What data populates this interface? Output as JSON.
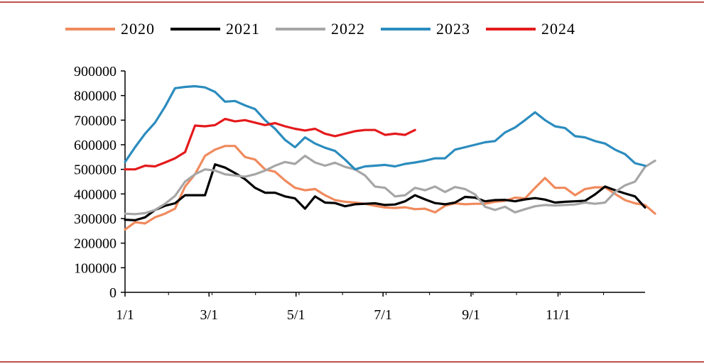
{
  "chart_data": {
    "type": "line",
    "title": "",
    "xlabel": "",
    "ylabel": "",
    "ylim": [
      0,
      900000
    ],
    "yticks": [
      "0",
      "100000",
      "200000",
      "300000",
      "400000",
      "500000",
      "600000",
      "700000",
      "800000",
      "900000"
    ],
    "xticks": [
      {
        "label": "1/1",
        "week": 0
      },
      {
        "label": "3/1",
        "week": 8.4
      },
      {
        "label": "5/1",
        "week": 17.1
      },
      {
        "label": "7/1",
        "week": 25.8
      },
      {
        "label": "9/1",
        "week": 34.6
      },
      {
        "label": "11/1",
        "week": 43.3
      }
    ],
    "xlim": [
      0,
      52
    ],
    "legend_position": "top",
    "series": [
      {
        "name": "2020",
        "color": "#f08a5d",
        "values": [
          255000,
          285000,
          280000,
          305000,
          320000,
          340000,
          430000,
          480000,
          555000,
          580000,
          595000,
          595000,
          550000,
          540000,
          500000,
          490000,
          455000,
          425000,
          415000,
          420000,
          395000,
          375000,
          368000,
          365000,
          360000,
          352000,
          345000,
          343000,
          346000,
          338000,
          340000,
          325000,
          352000,
          362000,
          358000,
          360000,
          360000,
          368000,
          372000,
          385000,
          382000,
          425000,
          465000,
          425000,
          425000,
          395000,
          420000,
          427000,
          427000,
          400000,
          375000,
          362000,
          355000,
          320000
        ]
      },
      {
        "name": "2021",
        "color": "#000000",
        "values": [
          295000,
          293000,
          305000,
          335000,
          352000,
          362000,
          395000,
          395000,
          395000,
          520000,
          507000,
          485000,
          460000,
          425000,
          405000,
          405000,
          390000,
          382000,
          340000,
          390000,
          365000,
          363000,
          350000,
          358000,
          360000,
          362000,
          355000,
          357000,
          370000,
          395000,
          378000,
          363000,
          358000,
          365000,
          388000,
          385000,
          370000,
          375000,
          376000,
          370000,
          378000,
          383000,
          377000,
          365000,
          368000,
          370000,
          372000,
          398000,
          430000,
          415000,
          402000,
          390000,
          345000
        ]
      },
      {
        "name": "2022",
        "color": "#a6a6a6",
        "values": [
          320000,
          318000,
          322000,
          335000,
          360000,
          392000,
          450000,
          480000,
          500000,
          495000,
          480000,
          475000,
          470000,
          480000,
          495000,
          515000,
          530000,
          522000,
          555000,
          528000,
          515000,
          527000,
          510000,
          500000,
          475000,
          430000,
          425000,
          390000,
          395000,
          425000,
          415000,
          430000,
          408000,
          428000,
          420000,
          398000,
          348000,
          335000,
          348000,
          325000,
          338000,
          350000,
          355000,
          353000,
          355000,
          357000,
          365000,
          360000,
          365000,
          408000,
          435000,
          450000,
          510000,
          535000
        ]
      },
      {
        "name": "2023",
        "color": "#2b8cbe",
        "values": [
          530000,
          590000,
          645000,
          690000,
          755000,
          830000,
          835000,
          838000,
          833000,
          815000,
          775000,
          778000,
          760000,
          745000,
          700000,
          665000,
          620000,
          590000,
          630000,
          605000,
          588000,
          575000,
          540000,
          500000,
          512000,
          515000,
          518000,
          512000,
          522000,
          528000,
          535000,
          545000,
          545000,
          580000,
          590000,
          600000,
          610000,
          615000,
          650000,
          670000,
          700000,
          732000,
          700000,
          675000,
          668000,
          635000,
          630000,
          615000,
          605000,
          580000,
          562000,
          525000,
          515000
        ]
      },
      {
        "name": "2024",
        "color": "#e41a1c",
        "values": [
          500000,
          500000,
          515000,
          512000,
          528000,
          545000,
          570000,
          678000,
          675000,
          680000,
          705000,
          695000,
          700000,
          690000,
          680000,
          688000,
          675000,
          665000,
          658000,
          665000,
          645000,
          635000,
          645000,
          655000,
          660000,
          660000,
          640000,
          645000,
          640000,
          660000
        ]
      }
    ]
  }
}
